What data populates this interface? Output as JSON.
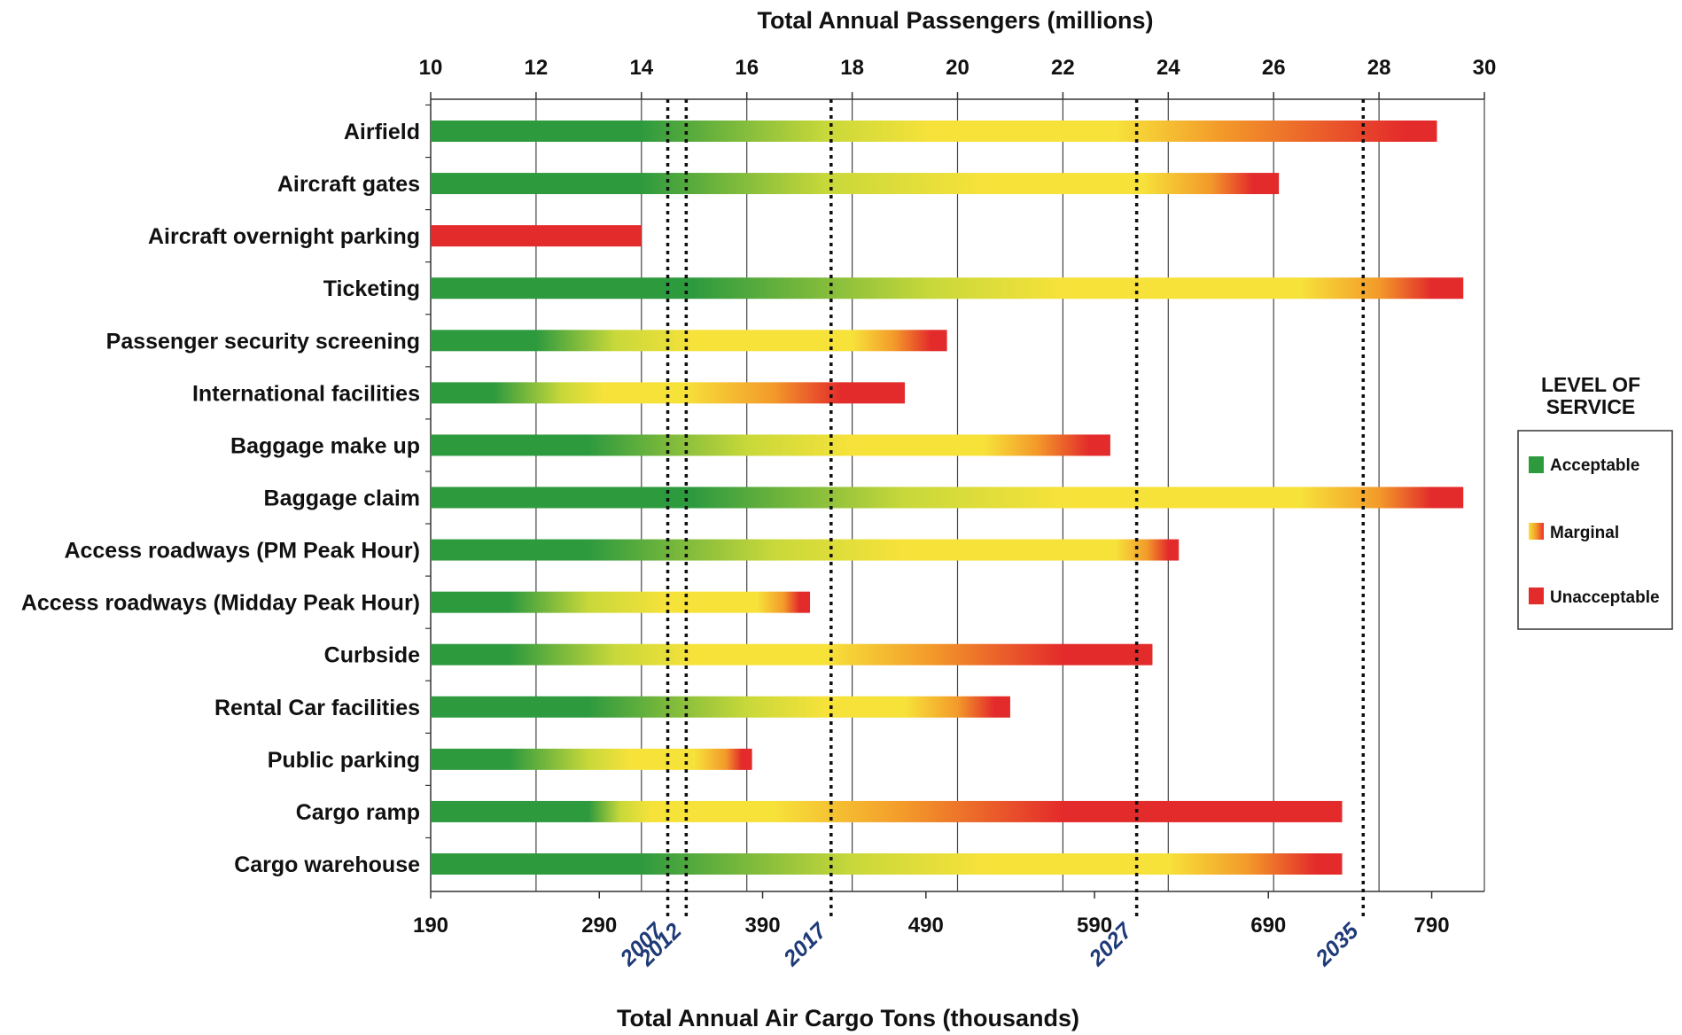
{
  "chart_data": {
    "type": "bar",
    "orientation": "horizontal",
    "title_top": "Total Annual Passengers (millions)",
    "title_bottom": "Total Annual Air Cargo Tons (thousands)",
    "top_axis": {
      "ticks": [
        "10",
        "12",
        "14",
        "16",
        "18",
        "20",
        "22",
        "24",
        "26",
        "28",
        "30"
      ],
      "range": [
        10,
        30
      ]
    },
    "bottom_axis": {
      "ticks": [
        "190",
        "290",
        "390",
        "490",
        "590",
        "690",
        "790"
      ],
      "tick_positions_passengers": [
        10,
        13.2,
        16.3,
        19.4,
        22.6,
        25.9,
        29.0
      ]
    },
    "year_markers": [
      {
        "label": "2007",
        "passengers": 14.5
      },
      {
        "label": "2012",
        "passengers": 14.85
      },
      {
        "label": "2017",
        "passengers": 17.6
      },
      {
        "label": "2027",
        "passengers": 23.4
      },
      {
        "label": "2035",
        "passengers": 27.7
      }
    ],
    "grid": true,
    "legend": {
      "title_lines": [
        "LEVEL OF",
        "SERVICE"
      ],
      "position": "right",
      "items": [
        {
          "label": "Acceptable",
          "color": "#2e9a3e"
        },
        {
          "label": "Marginal",
          "colors": [
            "#f7e23a",
            "#f39a2a",
            "#e8302a"
          ]
        },
        {
          "label": "Unacceptable",
          "color": "#e32b2b"
        }
      ]
    },
    "colors": {
      "acceptable": "#2e9a3e",
      "marginal_light": "#c8d83a",
      "marginal": "#f7e23a",
      "marginal_dark": "#f39a2a",
      "unacceptable": "#e32b2b"
    },
    "series_note_units": "passengers (millions)",
    "bars": [
      {
        "category": "Airfield",
        "end": 29.1,
        "stops": [
          [
            10,
            "green"
          ],
          [
            14,
            "green"
          ],
          [
            17.5,
            "yellowgreen"
          ],
          [
            19.5,
            "yellow"
          ],
          [
            23,
            "yellow"
          ],
          [
            25,
            "orange"
          ],
          [
            28.5,
            "red"
          ],
          [
            29.1,
            "red"
          ]
        ]
      },
      {
        "category": "Aircraft gates",
        "end": 26.1,
        "stops": [
          [
            10,
            "green"
          ],
          [
            14,
            "green"
          ],
          [
            17.5,
            "yellowgreen"
          ],
          [
            20.5,
            "yellow"
          ],
          [
            23.5,
            "yellow"
          ],
          [
            24.8,
            "orange"
          ],
          [
            25.6,
            "red"
          ],
          [
            26.1,
            "red"
          ]
        ]
      },
      {
        "category": "Aircraft overnight parking",
        "end": 14.0,
        "stops": [
          [
            10,
            "red"
          ],
          [
            14.0,
            "red"
          ]
        ]
      },
      {
        "category": "Ticketing",
        "end": 29.6,
        "stops": [
          [
            10,
            "green"
          ],
          [
            15,
            "green"
          ],
          [
            19.5,
            "yellowgreen"
          ],
          [
            22,
            "yellow"
          ],
          [
            26.5,
            "yellow"
          ],
          [
            28,
            "orange"
          ],
          [
            29,
            "red"
          ],
          [
            29.6,
            "red"
          ]
        ]
      },
      {
        "category": "Passenger security screening",
        "end": 19.8,
        "stops": [
          [
            10,
            "green"
          ],
          [
            12,
            "green"
          ],
          [
            13.5,
            "yellowgreen"
          ],
          [
            15,
            "yellow"
          ],
          [
            18,
            "yellow"
          ],
          [
            18.8,
            "orange"
          ],
          [
            19.5,
            "red"
          ],
          [
            19.8,
            "red"
          ]
        ]
      },
      {
        "category": "International facilities",
        "end": 19.0,
        "stops": [
          [
            10,
            "green"
          ],
          [
            11.2,
            "green"
          ],
          [
            12.5,
            "yellowgreen"
          ],
          [
            13.3,
            "yellow"
          ],
          [
            14.8,
            "yellow"
          ],
          [
            16.5,
            "orange"
          ],
          [
            17.8,
            "red"
          ],
          [
            19.0,
            "red"
          ]
        ]
      },
      {
        "category": "Baggage make up",
        "end": 22.9,
        "stops": [
          [
            10,
            "green"
          ],
          [
            13,
            "green"
          ],
          [
            16,
            "yellowgreen"
          ],
          [
            18,
            "yellow"
          ],
          [
            20.5,
            "yellow"
          ],
          [
            21.5,
            "orange"
          ],
          [
            22.5,
            "red"
          ],
          [
            22.9,
            "red"
          ]
        ]
      },
      {
        "category": "Baggage claim",
        "end": 29.6,
        "stops": [
          [
            10,
            "green"
          ],
          [
            15,
            "green"
          ],
          [
            19,
            "yellowgreen"
          ],
          [
            22,
            "yellow"
          ],
          [
            26.5,
            "yellow"
          ],
          [
            28,
            "orange"
          ],
          [
            29,
            "red"
          ],
          [
            29.6,
            "red"
          ]
        ]
      },
      {
        "category": "Access roadways (PM Peak Hour)",
        "end": 24.2,
        "stops": [
          [
            10,
            "green"
          ],
          [
            13,
            "green"
          ],
          [
            16.5,
            "yellowgreen"
          ],
          [
            19,
            "yellow"
          ],
          [
            23,
            "yellow"
          ],
          [
            23.6,
            "orange"
          ],
          [
            24.0,
            "red"
          ],
          [
            24.2,
            "red"
          ]
        ]
      },
      {
        "category": "Access roadways (Midday Peak Hour)",
        "end": 17.2,
        "stops": [
          [
            10,
            "green"
          ],
          [
            11.5,
            "green"
          ],
          [
            13,
            "yellowgreen"
          ],
          [
            14.5,
            "yellow"
          ],
          [
            16.2,
            "yellow"
          ],
          [
            16.7,
            "orange"
          ],
          [
            17.0,
            "red"
          ],
          [
            17.2,
            "red"
          ]
        ]
      },
      {
        "category": "Curbside",
        "end": 23.7,
        "stops": [
          [
            10,
            "green"
          ],
          [
            11.5,
            "green"
          ],
          [
            13.5,
            "yellowgreen"
          ],
          [
            15,
            "yellow"
          ],
          [
            17.5,
            "yellow"
          ],
          [
            19.5,
            "orange"
          ],
          [
            22,
            "red"
          ],
          [
            23.7,
            "red"
          ]
        ]
      },
      {
        "category": "Rental Car facilities",
        "end": 21.0,
        "stops": [
          [
            10,
            "green"
          ],
          [
            13,
            "green"
          ],
          [
            16,
            "yellowgreen"
          ],
          [
            17.5,
            "yellow"
          ],
          [
            19,
            "yellow"
          ],
          [
            20,
            "orange"
          ],
          [
            20.7,
            "red"
          ],
          [
            21.0,
            "red"
          ]
        ]
      },
      {
        "category": "Public parking",
        "end": 16.1,
        "stops": [
          [
            10,
            "green"
          ],
          [
            11.5,
            "green"
          ],
          [
            13,
            "yellowgreen"
          ],
          [
            13.8,
            "yellow"
          ],
          [
            15,
            "yellow"
          ],
          [
            15.6,
            "orange"
          ],
          [
            15.9,
            "red"
          ],
          [
            16.1,
            "red"
          ]
        ]
      },
      {
        "category": "Cargo ramp",
        "end": 27.3,
        "stops": [
          [
            10,
            "green"
          ],
          [
            13,
            "green"
          ],
          [
            13.6,
            "yellowgreen"
          ],
          [
            14.2,
            "yellow"
          ],
          [
            16.5,
            "yellow"
          ],
          [
            19,
            "orange"
          ],
          [
            22,
            "red"
          ],
          [
            27.3,
            "red"
          ]
        ]
      },
      {
        "category": "Cargo warehouse",
        "end": 27.3,
        "stops": [
          [
            10,
            "green"
          ],
          [
            14,
            "green"
          ],
          [
            18,
            "yellowgreen"
          ],
          [
            20.5,
            "yellow"
          ],
          [
            24,
            "yellow"
          ],
          [
            25.5,
            "orange"
          ],
          [
            26.8,
            "red"
          ],
          [
            27.3,
            "red"
          ]
        ]
      }
    ]
  }
}
